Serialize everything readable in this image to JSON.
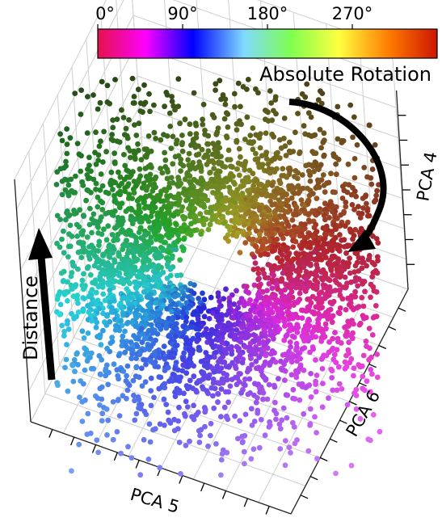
{
  "chart_data": {
    "type": "scatter",
    "projection": "3d",
    "title": "",
    "axes": {
      "x": {
        "label": "PCA 5"
      },
      "y": {
        "label": "PCA 6"
      },
      "z": {
        "label": "PCA 4"
      }
    },
    "grid": true,
    "colorbar": {
      "label": "Absolute Rotation",
      "placement": "top",
      "ticks": [
        "0°",
        "90°",
        "180°",
        "270°"
      ],
      "range": [
        0,
        360
      ],
      "colormap": "cyclic hue, desaturating with distance",
      "stops": [
        "#e3134a",
        "#ff00ff",
        "#0000ff",
        "#7fd9ff",
        "#7fff4f",
        "#ffff40",
        "#ff7a00",
        "#cc1500"
      ]
    },
    "annotations": [
      {
        "text": "Distance",
        "arrow": "up"
      },
      {
        "text": "Absolute Rotation",
        "arrow": "clockwise"
      }
    ],
    "point_count_estimate": 5000
  }
}
